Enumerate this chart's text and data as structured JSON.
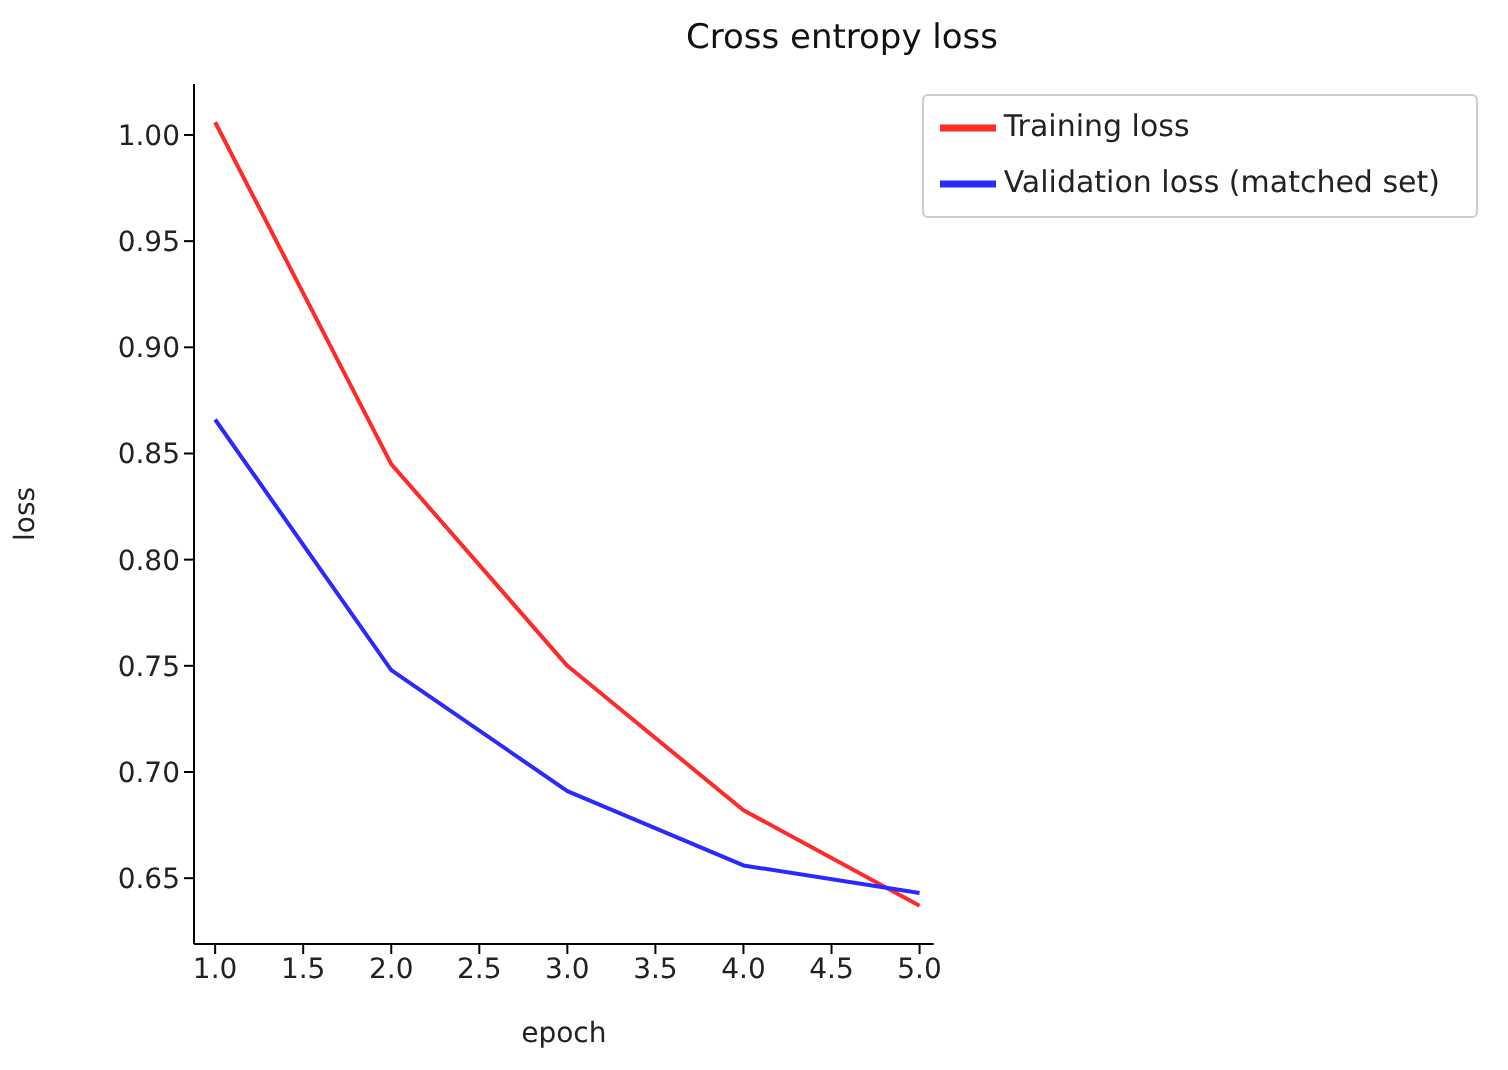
{
  "chart_data": {
    "type": "line",
    "title": "Cross entropy loss",
    "xlabel": "epoch",
    "ylabel": "loss",
    "x": [
      1,
      2,
      3,
      4,
      5
    ],
    "series": [
      {
        "name": "Training loss",
        "color": "#ff2a2a",
        "values": [
          1.006,
          0.845,
          0.75,
          0.682,
          0.637
        ]
      },
      {
        "name": "Validation loss (matched set)",
        "color": "#2a2aff",
        "values": [
          0.866,
          0.748,
          0.691,
          0.656,
          0.643
        ]
      }
    ],
    "xlim": [
      0.88,
      5.08
    ],
    "xticks": [
      {
        "value": 1,
        "label": "1.0"
      },
      {
        "value": 1.5,
        "label": "1.5"
      },
      {
        "value": 2,
        "label": "2.0"
      },
      {
        "value": 2.5,
        "label": "2.5"
      },
      {
        "value": 3,
        "label": "3.0"
      },
      {
        "value": 3.5,
        "label": "3.5"
      },
      {
        "value": 4,
        "label": "4.0"
      },
      {
        "value": 4.5,
        "label": "4.5"
      },
      {
        "value": 5,
        "label": "5.0"
      }
    ],
    "ylim": [
      0.619,
      1.024
    ],
    "yticks": [
      {
        "value": 0.65,
        "label": "0.65"
      },
      {
        "value": 0.7,
        "label": "0.70"
      },
      {
        "value": 0.75,
        "label": "0.75"
      },
      {
        "value": 0.8,
        "label": "0.80"
      },
      {
        "value": 0.85,
        "label": "0.85"
      },
      {
        "value": 0.9,
        "label": "0.90"
      },
      {
        "value": 0.95,
        "label": "0.95"
      },
      {
        "value": 1,
        "label": "1.00"
      }
    ],
    "grid": false,
    "legend": "top right",
    "marker": "none",
    "line_style": "solid"
  }
}
